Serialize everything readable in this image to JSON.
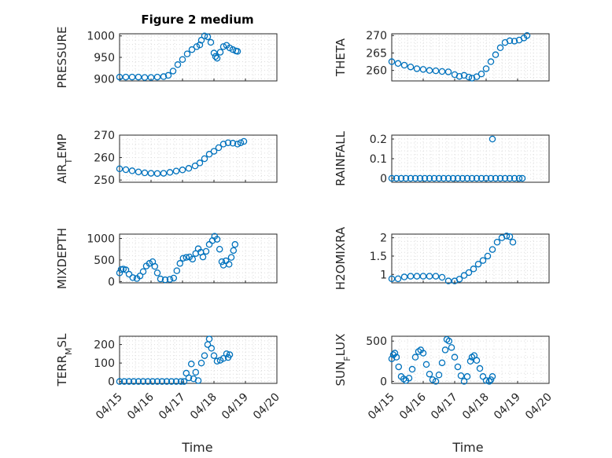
{
  "figure": {
    "title": "Figure 2 medium"
  },
  "colors": {
    "marker": "#0072BD",
    "axis": "#262626",
    "grid": "#dcdcdc"
  },
  "x_ticks": [
    "04/15",
    "04/16",
    "04/17",
    "04/18",
    "04/19",
    "04/20"
  ],
  "x_label": "Time",
  "chart_data": [
    {
      "type": "scatter",
      "ylabel": "PRESSURE",
      "ylabel_sub": "",
      "ylabel_rest": "",
      "ylim": [
        895,
        1005
      ],
      "yticks": [
        "900",
        "950",
        "1000"
      ],
      "ytick_values": [
        900,
        950,
        1000
      ],
      "grid": true,
      "marker": "o",
      "points": [
        [
          0.0,
          904
        ],
        [
          0.2,
          904
        ],
        [
          0.4,
          904
        ],
        [
          0.6,
          904
        ],
        [
          0.8,
          903
        ],
        [
          1.0,
          903
        ],
        [
          1.2,
          904
        ],
        [
          1.4,
          905
        ],
        [
          1.55,
          908
        ],
        [
          1.7,
          918
        ],
        [
          1.85,
          933
        ],
        [
          2.0,
          945
        ],
        [
          2.15,
          958
        ],
        [
          2.3,
          968
        ],
        [
          2.45,
          975
        ],
        [
          2.55,
          979
        ],
        [
          2.6,
          990
        ],
        [
          2.7,
          1000
        ],
        [
          2.8,
          998
        ],
        [
          2.9,
          985
        ],
        [
          3.0,
          960
        ],
        [
          3.05,
          952
        ],
        [
          3.1,
          948
        ],
        [
          3.2,
          962
        ],
        [
          3.3,
          975
        ],
        [
          3.4,
          978
        ],
        [
          3.5,
          972
        ],
        [
          3.6,
          968
        ],
        [
          3.7,
          965
        ],
        [
          3.75,
          964
        ]
      ]
    },
    {
      "type": "scatter",
      "ylabel": "THETA",
      "ylabel_sub": "",
      "ylabel_rest": "",
      "ylim": [
        257,
        270.5
      ],
      "yticks": [
        "260",
        "265",
        "270"
      ],
      "ytick_values": [
        260,
        265,
        270
      ],
      "grid": true,
      "marker": "o",
      "points": [
        [
          0.0,
          262.5
        ],
        [
          0.2,
          262
        ],
        [
          0.4,
          261.5
        ],
        [
          0.6,
          261
        ],
        [
          0.8,
          260.5
        ],
        [
          1.0,
          260.3
        ],
        [
          1.2,
          260
        ],
        [
          1.4,
          259.9
        ],
        [
          1.6,
          259.7
        ],
        [
          1.8,
          259.6
        ],
        [
          2.0,
          258.8
        ],
        [
          2.15,
          258.3
        ],
        [
          2.3,
          258.6
        ],
        [
          2.45,
          258.1
        ],
        [
          2.55,
          257.8
        ],
        [
          2.7,
          258.2
        ],
        [
          2.85,
          259
        ],
        [
          3.0,
          260.5
        ],
        [
          3.15,
          262.5
        ],
        [
          3.3,
          264.5
        ],
        [
          3.45,
          266.5
        ],
        [
          3.6,
          268
        ],
        [
          3.75,
          268.5
        ],
        [
          3.9,
          268.4
        ],
        [
          4.05,
          268.7
        ],
        [
          4.2,
          269.3
        ],
        [
          4.3,
          270
        ]
      ]
    },
    {
      "type": "scatter",
      "ylabel": "AIR",
      "ylabel_sub": "T",
      "ylabel_rest": "EMP",
      "ylim": [
        249,
        270
      ],
      "yticks": [
        "250",
        "260",
        "270"
      ],
      "ytick_values": [
        250,
        260,
        270
      ],
      "grid": true,
      "marker": "o",
      "points": [
        [
          0.0,
          255
        ],
        [
          0.2,
          254.6
        ],
        [
          0.4,
          254.1
        ],
        [
          0.6,
          253.6
        ],
        [
          0.8,
          253.2
        ],
        [
          1.0,
          253
        ],
        [
          1.2,
          252.9
        ],
        [
          1.4,
          253
        ],
        [
          1.6,
          253.4
        ],
        [
          1.8,
          254
        ],
        [
          2.0,
          254.5
        ],
        [
          2.2,
          255.2
        ],
        [
          2.4,
          256.3
        ],
        [
          2.55,
          257.6
        ],
        [
          2.7,
          259.5
        ],
        [
          2.85,
          261.5
        ],
        [
          3.0,
          262.8
        ],
        [
          3.15,
          264.4
        ],
        [
          3.3,
          266
        ],
        [
          3.45,
          266.6
        ],
        [
          3.6,
          266.4
        ],
        [
          3.75,
          266
        ],
        [
          3.85,
          266.6
        ],
        [
          3.95,
          267.2
        ]
      ]
    },
    {
      "type": "scatter",
      "ylabel": "RAINFALL",
      "ylabel_sub": "",
      "ylabel_rest": "",
      "ylim": [
        -0.02,
        0.22
      ],
      "yticks": [
        "0",
        "0.1",
        "0.2"
      ],
      "ytick_values": [
        0,
        0.1,
        0.2
      ],
      "grid": true,
      "marker": "o",
      "points": [
        [
          0.0,
          0
        ],
        [
          0.15,
          0
        ],
        [
          0.3,
          0
        ],
        [
          0.45,
          0
        ],
        [
          0.6,
          0
        ],
        [
          0.75,
          0
        ],
        [
          0.9,
          0
        ],
        [
          1.05,
          0
        ],
        [
          1.2,
          0
        ],
        [
          1.35,
          0
        ],
        [
          1.5,
          0
        ],
        [
          1.65,
          0
        ],
        [
          1.8,
          0
        ],
        [
          1.95,
          0
        ],
        [
          2.1,
          0
        ],
        [
          2.25,
          0
        ],
        [
          2.4,
          0
        ],
        [
          2.55,
          0
        ],
        [
          2.7,
          0
        ],
        [
          2.85,
          0
        ],
        [
          3.0,
          0
        ],
        [
          3.15,
          0
        ],
        [
          3.3,
          0
        ],
        [
          3.45,
          0
        ],
        [
          3.6,
          0
        ],
        [
          3.75,
          0
        ],
        [
          3.9,
          0
        ],
        [
          4.05,
          0
        ],
        [
          4.15,
          0
        ],
        [
          3.2,
          0.2
        ]
      ]
    },
    {
      "type": "scatter",
      "ylabel": "MIXDEPTH",
      "ylabel_sub": "",
      "ylabel_rest": "",
      "ylim": [
        -30,
        1100
      ],
      "yticks": [
        "0",
        "500",
        "1000"
      ],
      "ytick_values": [
        0,
        500,
        1000
      ],
      "grid": true,
      "marker": "o",
      "points": [
        [
          0.0,
          200
        ],
        [
          0.05,
          280
        ],
        [
          0.12,
          290
        ],
        [
          0.2,
          270
        ],
        [
          0.3,
          170
        ],
        [
          0.42,
          90
        ],
        [
          0.55,
          70
        ],
        [
          0.65,
          130
        ],
        [
          0.75,
          230
        ],
        [
          0.85,
          360
        ],
        [
          0.95,
          420
        ],
        [
          1.05,
          460
        ],
        [
          1.12,
          350
        ],
        [
          1.2,
          200
        ],
        [
          1.3,
          60
        ],
        [
          1.45,
          40
        ],
        [
          1.6,
          50
        ],
        [
          1.72,
          80
        ],
        [
          1.82,
          250
        ],
        [
          1.92,
          420
        ],
        [
          2.02,
          540
        ],
        [
          2.12,
          560
        ],
        [
          2.22,
          570
        ],
        [
          2.32,
          520
        ],
        [
          2.42,
          650
        ],
        [
          2.5,
          760
        ],
        [
          2.58,
          680
        ],
        [
          2.65,
          570
        ],
        [
          2.75,
          700
        ],
        [
          2.85,
          860
        ],
        [
          2.95,
          950
        ],
        [
          3.02,
          1050
        ],
        [
          3.1,
          980
        ],
        [
          3.18,
          750
        ],
        [
          3.25,
          460
        ],
        [
          3.3,
          380
        ],
        [
          3.38,
          480
        ],
        [
          3.48,
          400
        ],
        [
          3.55,
          560
        ],
        [
          3.62,
          720
        ],
        [
          3.67,
          860
        ]
      ]
    },
    {
      "type": "scatter",
      "ylabel": "H2OMIXRA",
      "ylabel_sub": "",
      "ylabel_rest": "",
      "ylim": [
        0.77,
        2.1
      ],
      "yticks": [
        "1",
        "1.5",
        "2"
      ],
      "ytick_values": [
        1,
        1.5,
        2
      ],
      "grid": true,
      "marker": "o",
      "points": [
        [
          0.0,
          0.88
        ],
        [
          0.2,
          0.88
        ],
        [
          0.4,
          0.93
        ],
        [
          0.6,
          0.95
        ],
        [
          0.8,
          0.95
        ],
        [
          1.0,
          0.95
        ],
        [
          1.2,
          0.95
        ],
        [
          1.4,
          0.95
        ],
        [
          1.6,
          0.92
        ],
        [
          1.8,
          0.82
        ],
        [
          2.0,
          0.82
        ],
        [
          2.15,
          0.87
        ],
        [
          2.3,
          0.97
        ],
        [
          2.45,
          1.05
        ],
        [
          2.6,
          1.15
        ],
        [
          2.75,
          1.28
        ],
        [
          2.9,
          1.38
        ],
        [
          3.05,
          1.5
        ],
        [
          3.2,
          1.68
        ],
        [
          3.35,
          1.88
        ],
        [
          3.5,
          2.0
        ],
        [
          3.65,
          2.05
        ],
        [
          3.75,
          2.03
        ],
        [
          3.85,
          1.88
        ]
      ]
    },
    {
      "type": "scatter",
      "ylabel": "TERR",
      "ylabel_sub": "M",
      "ylabel_rest": "SL",
      "ylim": [
        -10,
        245
      ],
      "yticks": [
        "0",
        "100",
        "200"
      ],
      "ytick_values": [
        0,
        100,
        200
      ],
      "grid": true,
      "marker": "o",
      "points": [
        [
          0.0,
          0
        ],
        [
          0.15,
          0
        ],
        [
          0.3,
          0
        ],
        [
          0.45,
          0
        ],
        [
          0.6,
          0
        ],
        [
          0.75,
          0
        ],
        [
          0.9,
          0
        ],
        [
          1.05,
          0
        ],
        [
          1.2,
          0
        ],
        [
          1.35,
          0
        ],
        [
          1.5,
          0
        ],
        [
          1.65,
          0
        ],
        [
          1.8,
          0
        ],
        [
          1.95,
          0
        ],
        [
          2.05,
          0
        ],
        [
          2.12,
          45
        ],
        [
          2.2,
          20
        ],
        [
          2.28,
          95
        ],
        [
          2.35,
          15
        ],
        [
          2.42,
          50
        ],
        [
          2.5,
          5
        ],
        [
          2.6,
          100
        ],
        [
          2.7,
          140
        ],
        [
          2.8,
          200
        ],
        [
          2.85,
          230
        ],
        [
          2.92,
          180
        ],
        [
          3.0,
          140
        ],
        [
          3.1,
          110
        ],
        [
          3.2,
          115
        ],
        [
          3.3,
          125
        ],
        [
          3.4,
          150
        ],
        [
          3.45,
          130
        ],
        [
          3.5,
          145
        ]
      ]
    },
    {
      "type": "scatter",
      "ylabel": "SUN",
      "ylabel_sub": "F",
      "ylabel_rest": "LUX",
      "ylim": [
        -25,
        560
      ],
      "yticks": [
        "0",
        "500"
      ],
      "ytick_values": [
        0,
        500
      ],
      "grid": true,
      "marker": "o",
      "points": [
        [
          0.0,
          280
        ],
        [
          0.05,
          330
        ],
        [
          0.1,
          350
        ],
        [
          0.15,
          300
        ],
        [
          0.22,
          180
        ],
        [
          0.3,
          60
        ],
        [
          0.38,
          30
        ],
        [
          0.45,
          10
        ],
        [
          0.55,
          40
        ],
        [
          0.65,
          150
        ],
        [
          0.75,
          300
        ],
        [
          0.85,
          370
        ],
        [
          0.92,
          390
        ],
        [
          1.0,
          350
        ],
        [
          1.1,
          210
        ],
        [
          1.2,
          90
        ],
        [
          1.3,
          20
        ],
        [
          1.4,
          0
        ],
        [
          1.5,
          80
        ],
        [
          1.6,
          230
        ],
        [
          1.7,
          390
        ],
        [
          1.75,
          520
        ],
        [
          1.82,
          500
        ],
        [
          1.9,
          420
        ],
        [
          2.0,
          300
        ],
        [
          2.1,
          180
        ],
        [
          2.2,
          70
        ],
        [
          2.3,
          0
        ],
        [
          2.4,
          60
        ],
        [
          2.5,
          250
        ],
        [
          2.55,
          300
        ],
        [
          2.62,
          320
        ],
        [
          2.7,
          260
        ],
        [
          2.8,
          160
        ],
        [
          2.9,
          60
        ],
        [
          3.0,
          10
        ],
        [
          3.1,
          0
        ],
        [
          3.15,
          20
        ],
        [
          3.2,
          60
        ]
      ]
    }
  ]
}
